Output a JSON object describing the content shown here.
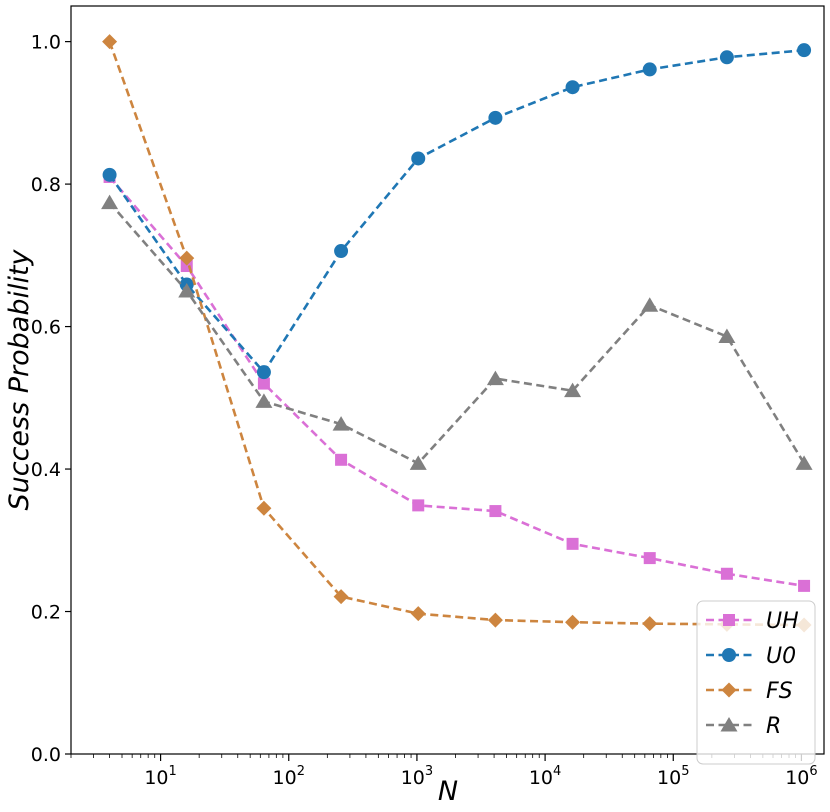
{
  "chart_data": {
    "type": "line",
    "title": "",
    "xlabel": "N",
    "ylabel": "Success Probability",
    "xscale": "log",
    "xlim": [
      2.0,
      1500000
    ],
    "ylim": [
      0.0,
      1.05
    ],
    "x": [
      4,
      16,
      64,
      256,
      1024,
      4096,
      16384,
      65536,
      262144,
      1048576
    ],
    "x_ticks": [
      {
        "value": 10,
        "base": "10",
        "exp": "1"
      },
      {
        "value": 100,
        "base": "10",
        "exp": "2"
      },
      {
        "value": 1000,
        "base": "10",
        "exp": "3"
      },
      {
        "value": 10000,
        "base": "10",
        "exp": "4"
      },
      {
        "value": 100000,
        "base": "10",
        "exp": "5"
      },
      {
        "value": 1000000,
        "base": "10",
        "exp": "6"
      }
    ],
    "y_ticks": [
      {
        "value": 0.0,
        "label": "0.0"
      },
      {
        "value": 0.2,
        "label": "0.2"
      },
      {
        "value": 0.4,
        "label": "0.4"
      },
      {
        "value": 0.6,
        "label": "0.6"
      },
      {
        "value": 0.8,
        "label": "0.8"
      },
      {
        "value": 1.0,
        "label": "1.0"
      }
    ],
    "legend_position": "bottom-right",
    "grid": false,
    "series": [
      {
        "name": "UH",
        "color": "#da70d6",
        "marker": "square",
        "values": [
          0.81,
          0.685,
          0.52,
          0.413,
          0.349,
          0.341,
          0.295,
          0.275,
          0.253,
          0.236
        ]
      },
      {
        "name": "U0",
        "color": "#1f77b4",
        "marker": "circle",
        "values": [
          0.813,
          0.659,
          0.536,
          0.706,
          0.836,
          0.893,
          0.936,
          0.961,
          0.978,
          0.988
        ]
      },
      {
        "name": "FS",
        "color": "#cd853f",
        "marker": "diamond",
        "values": [
          1.0,
          0.696,
          0.345,
          0.221,
          0.197,
          0.188,
          0.185,
          0.183,
          0.182,
          0.181
        ]
      },
      {
        "name": "R",
        "color": "#808080",
        "marker": "triangle",
        "values": [
          0.774,
          0.65,
          0.495,
          0.463,
          0.408,
          0.527,
          0.51,
          0.63,
          0.586,
          0.408
        ]
      }
    ]
  }
}
